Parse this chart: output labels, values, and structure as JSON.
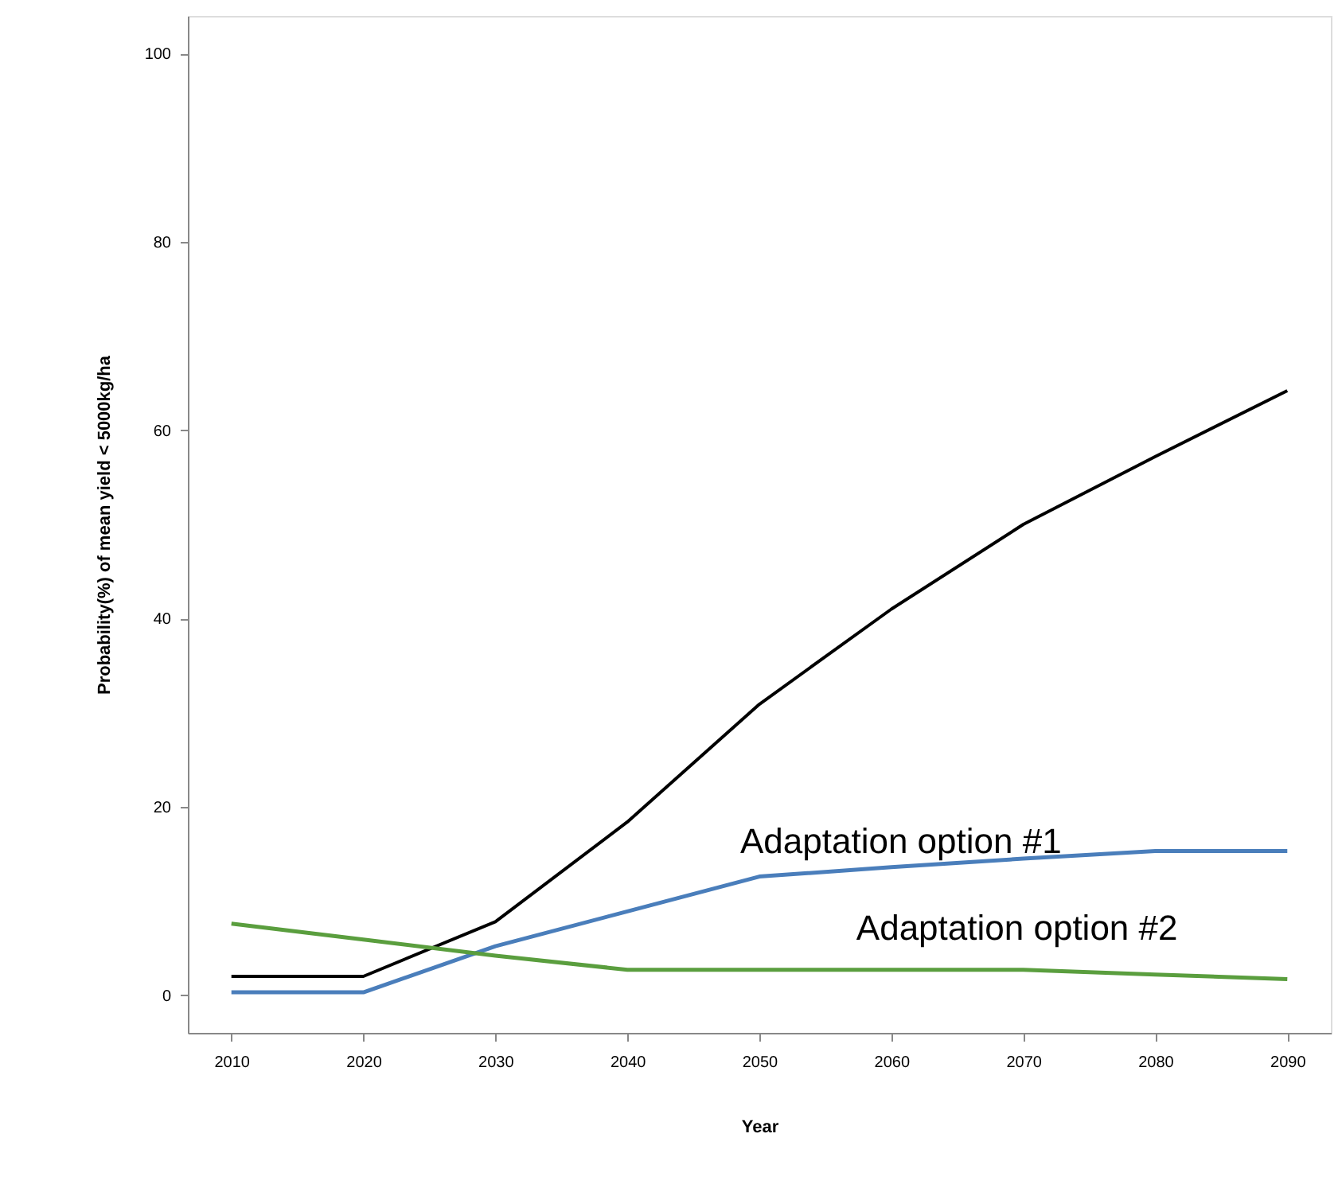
{
  "chart_data": {
    "type": "line",
    "xlabel": "Year",
    "ylabel": "Probability(%) of mean yield < 5000kg/ha",
    "x": [
      2010,
      2020,
      2030,
      2040,
      2050,
      2060,
      2070,
      2080,
      2090
    ],
    "series": [
      {
        "color": "#000000",
        "values": [
          2.0,
          2.0,
          7.8,
          18.4,
          30.9,
          41.0,
          50.0,
          57.2,
          64.2
        ]
      },
      {
        "name": "Adaptation option #1",
        "color": "#4a7ebb",
        "values": [
          0.3,
          0.3,
          5.2,
          8.9,
          12.6,
          13.6,
          14.5,
          15.3,
          15.3
        ]
      },
      {
        "name": "Adaptation option #2",
        "color": "#5a9e3e",
        "values": [
          7.6,
          5.9,
          4.2,
          2.7,
          2.7,
          2.7,
          2.7,
          2.2,
          1.7
        ]
      }
    ],
    "xlim": [
      2006.7,
      2093.3
    ],
    "ylim": [
      -4,
      104
    ],
    "xticks": [
      2010,
      2020,
      2030,
      2040,
      2050,
      2060,
      2070,
      2080,
      2090
    ],
    "yticks": [
      0,
      20,
      40,
      60,
      80,
      100
    ],
    "grid": false,
    "marker": "none",
    "line_style": "solid"
  }
}
